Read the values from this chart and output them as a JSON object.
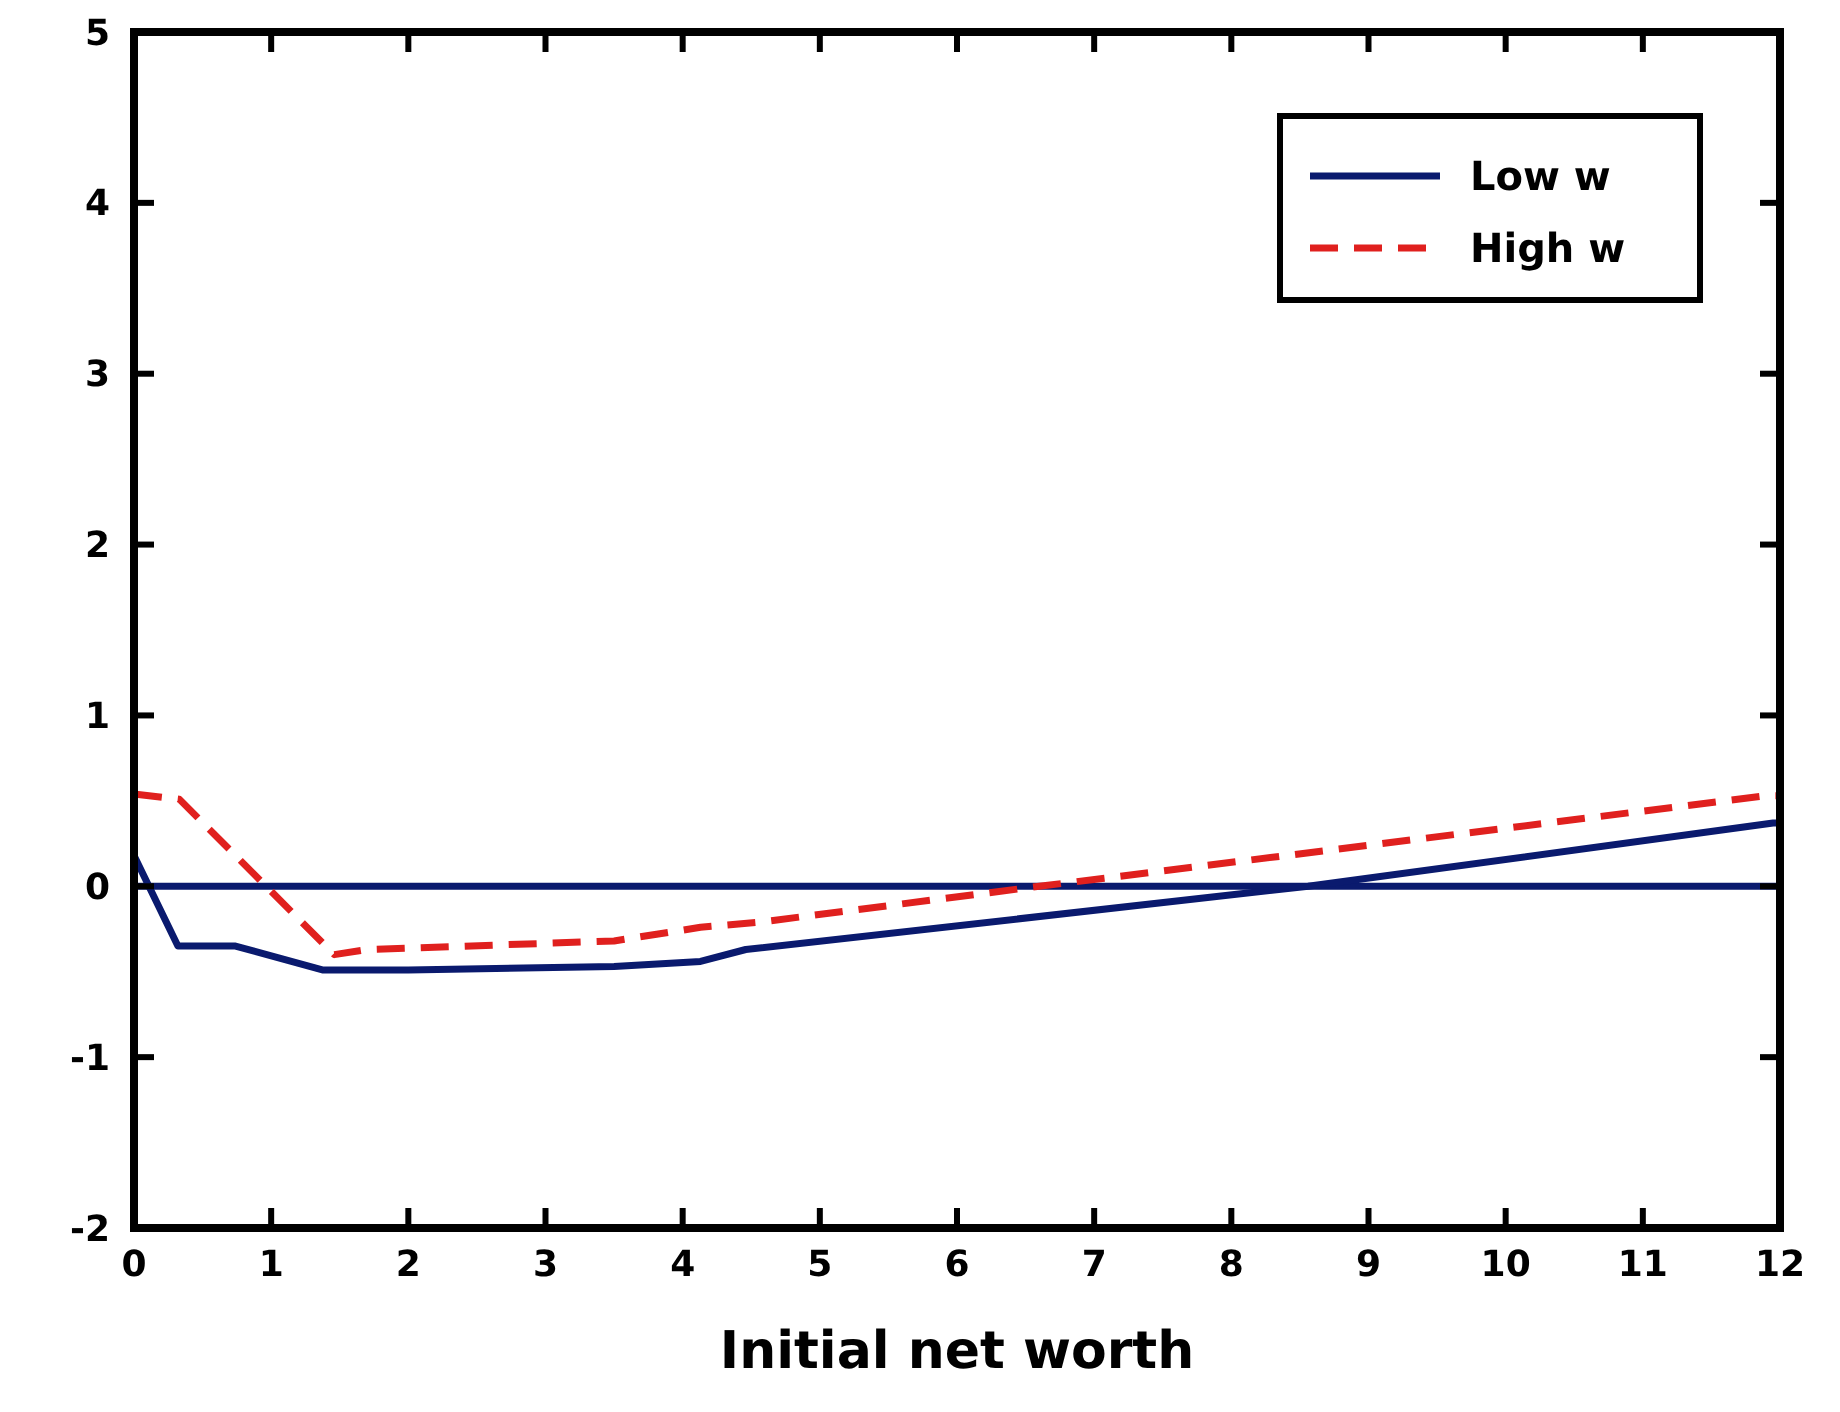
{
  "chart_data": {
    "type": "line",
    "xlabel": "Initial net worth",
    "xlim": [
      0,
      12
    ],
    "xticks": [
      0,
      1,
      2,
      3,
      4,
      5,
      6,
      7,
      8,
      9,
      10,
      11,
      12
    ],
    "ylim": [
      -2,
      5
    ],
    "yticks": [
      -2,
      -1,
      0,
      1,
      2,
      3,
      4,
      5
    ],
    "grid": false,
    "legend": "top right",
    "ref_lines": [
      {
        "axis": "y",
        "value": 0,
        "color": "#0a1a6e",
        "line_style": "solid"
      }
    ],
    "series": [
      {
        "name": "Low w",
        "color": "#0a1a6e",
        "line_style": "solid",
        "x": [
          0,
          0.32,
          0.74,
          1.38,
          2.0,
          3.5,
          4.13,
          4.46,
          8.56,
          11.95,
          12
        ],
        "values": [
          0.18,
          -0.35,
          -0.35,
          -0.49,
          -0.49,
          -0.47,
          -0.44,
          -0.37,
          0,
          0.37,
          0.37
        ]
      },
      {
        "name": "High w",
        "color": "#e0201e",
        "line_style": "dashed",
        "x": [
          0,
          0.33,
          1.46,
          1.7,
          3.5,
          4.13,
          4.56,
          6.6,
          11.9,
          12
        ],
        "values": [
          0.54,
          0.51,
          -0.4,
          -0.37,
          -0.32,
          -0.24,
          -0.21,
          0,
          0.53,
          0.53
        ]
      }
    ]
  }
}
